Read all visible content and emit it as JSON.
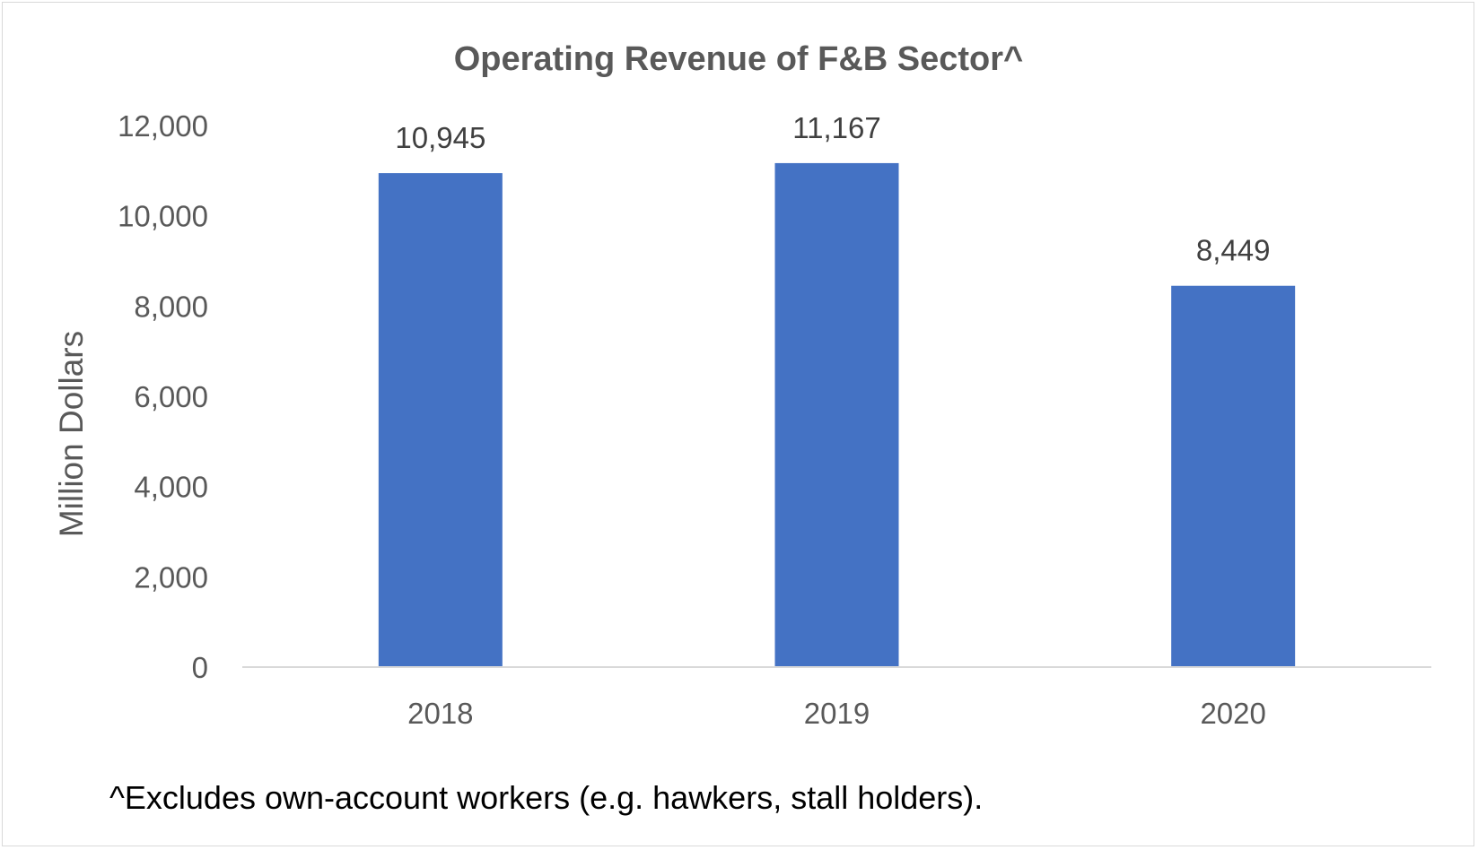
{
  "chart_data": {
    "type": "bar",
    "title": "Operating Revenue of F&B Sector^",
    "xlabel": "",
    "ylabel": "Million Dollars",
    "categories": [
      "2018",
      "2019",
      "2020"
    ],
    "values": [
      10945,
      11167,
      8449
    ],
    "data_labels": [
      "10,945",
      "11,167",
      "8,449"
    ],
    "ylim": [
      0,
      12000
    ],
    "yticks": [
      0,
      2000,
      4000,
      6000,
      8000,
      10000,
      12000
    ],
    "ytick_labels": [
      "0",
      "2,000",
      "4,000",
      "6,000",
      "8,000",
      "10,000",
      "12,000"
    ],
    "grid": false,
    "legend": "none",
    "bar_color": "#4472C4",
    "footnote": "^Excludes own-account workers (e.g. hawkers, stall holders)."
  }
}
